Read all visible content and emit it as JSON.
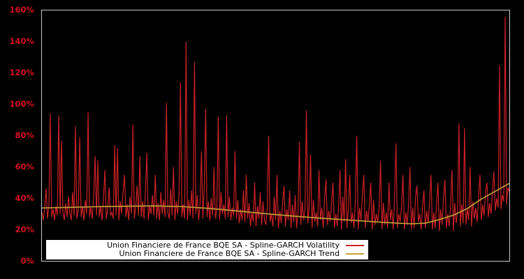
{
  "figure": {
    "background": "#000000",
    "plot_border_color": "#c8c8c8",
    "axis_label_color": "#d40f20"
  },
  "y_axis": {
    "ticks": [
      {
        "label": "0%",
        "value": 0
      },
      {
        "label": "20%",
        "value": 20
      },
      {
        "label": "40%",
        "value": 40
      },
      {
        "label": "60%",
        "value": 60
      },
      {
        "label": "80%",
        "value": 80
      },
      {
        "label": "100%",
        "value": 100
      },
      {
        "label": "120%",
        "value": 120
      },
      {
        "label": "140%",
        "value": 140
      },
      {
        "label": "160%",
        "value": 160
      }
    ]
  },
  "x_axis": {
    "tick_labels": []
  },
  "legend": {
    "background": "#ffffff",
    "text_color": "#000000",
    "position": "bottom-left-inside"
  },
  "chart_data": {
    "type": "line",
    "title": "",
    "xlabel": "",
    "ylabel": "",
    "ylim": [
      0,
      160
    ],
    "grid": false,
    "legend_position": "bottom-inside",
    "series": [
      {
        "name": "Union Financiere de France BQE SA - Spline-GARCH Volatility",
        "color": "#cc2027",
        "unit": "%",
        "values": [
          31,
          26,
          34,
          46,
          27,
          35,
          94,
          28,
          33,
          26,
          35,
          29,
          93,
          30,
          77,
          31,
          26,
          37,
          28,
          41,
          30,
          26,
          44,
          29,
          86,
          27,
          33,
          79,
          28,
          35,
          26,
          39,
          30,
          95,
          28,
          34,
          27,
          42,
          67,
          29,
          64,
          28,
          35,
          26,
          40,
          58,
          27,
          33,
          47,
          29,
          31,
          27,
          74,
          29,
          72,
          26,
          38,
          30,
          44,
          55,
          28,
          36,
          26,
          41,
          30,
          87,
          27,
          34,
          48,
          29,
          67,
          28,
          38,
          27,
          45,
          69,
          26,
          35,
          30,
          42,
          29,
          55,
          27,
          37,
          26,
          44,
          30,
          39,
          28,
          101,
          31,
          27,
          46,
          29,
          60,
          26,
          38,
          30,
          43,
          114,
          28,
          36,
          27,
          140,
          26,
          39,
          29,
          45,
          27,
          127,
          30,
          42,
          26,
          36,
          70,
          27,
          47,
          97,
          28,
          38,
          26,
          40,
          29,
          60,
          27,
          33,
          92,
          26,
          44,
          30,
          36,
          27,
          93,
          28,
          41,
          26,
          34,
          29,
          70,
          27,
          39,
          24,
          33,
          26,
          45,
          25,
          55,
          27,
          37,
          22,
          31,
          25,
          50,
          22,
          35,
          27,
          44,
          23,
          38,
          26,
          23,
          34,
          80,
          25,
          30,
          22,
          41,
          26,
          55,
          21,
          32,
          24,
          37,
          48,
          22,
          33,
          26,
          45,
          21,
          36,
          25,
          42,
          21,
          31,
          76,
          23,
          38,
          26,
          33,
          96,
          24,
          35,
          68,
          21,
          39,
          25,
          31,
          22,
          58,
          26,
          34,
          21,
          40,
          52,
          23,
          32,
          25,
          37,
          50,
          21,
          30,
          22,
          35,
          58,
          20,
          41,
          25,
          65,
          21,
          33,
          55,
          24,
          31,
          21,
          38,
          80,
          20,
          34,
          26,
          42,
          55,
          21,
          32,
          25,
          36,
          50,
          20,
          39,
          23,
          30,
          25,
          34,
          64,
          20,
          37,
          23,
          31,
          21,
          50,
          26,
          33,
          20,
          40,
          75,
          21,
          30,
          25,
          35,
          55,
          20,
          31,
          23,
          37,
          60,
          20,
          34,
          21,
          41,
          48,
          25,
          30,
          20,
          35,
          45,
          21,
          32,
          24,
          38,
          55,
          20,
          31,
          21,
          36,
          50,
          19,
          33,
          23,
          40,
          52,
          21,
          30,
          22,
          34,
          58,
          19,
          37,
          24,
          32,
          88,
          22,
          36,
          24,
          85,
          23,
          33,
          26,
          60,
          22,
          38,
          27,
          34,
          25,
          41,
          55,
          26,
          36,
          29,
          44,
          50,
          28,
          37,
          30,
          45,
          57,
          32,
          40,
          34,
          125,
          33,
          42,
          38,
          156,
          36,
          47,
          44
        ]
      },
      {
        "name": "Union Financiere de France BQE SA - Spline-GARCH Trend",
        "color": "#c2a23b",
        "unit": "%",
        "points": [
          [
            0,
            33.8
          ],
          [
            40,
            34.2
          ],
          [
            80,
            34.6
          ],
          [
            120,
            34.9
          ],
          [
            160,
            35.1
          ],
          [
            200,
            34.7
          ],
          [
            240,
            33.5
          ],
          [
            280,
            31.9
          ],
          [
            320,
            30.2
          ],
          [
            360,
            28.6
          ],
          [
            400,
            27.3
          ],
          [
            440,
            26.1
          ],
          [
            480,
            24.9
          ],
          [
            510,
            24.1
          ],
          [
            530,
            23.7
          ],
          [
            550,
            24.1
          ],
          [
            568,
            26.2
          ],
          [
            590,
            29.2
          ],
          [
            610,
            33.5
          ],
          [
            630,
            39.5
          ],
          [
            650,
            44.5
          ],
          [
            670,
            49.5
          ]
        ]
      }
    ]
  }
}
